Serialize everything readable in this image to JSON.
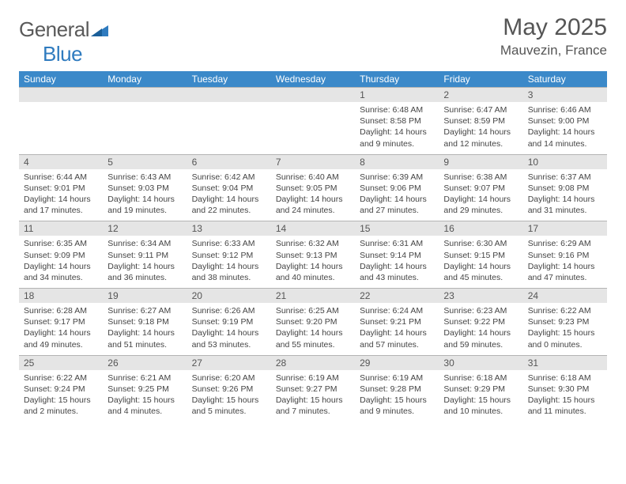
{
  "logo": {
    "text1": "General",
    "text2": "Blue"
  },
  "title": "May 2025",
  "location": "Mauvezin, France",
  "colors": {
    "header_bg": "#3b89c9",
    "header_text": "#ffffff",
    "daynum_bg": "#e5e5e5",
    "border": "#b4b4b4",
    "text": "#444444",
    "title_text": "#555555"
  },
  "weekdays": [
    "Sunday",
    "Monday",
    "Tuesday",
    "Wednesday",
    "Thursday",
    "Friday",
    "Saturday"
  ],
  "weeks": [
    {
      "nums": [
        "",
        "",
        "",
        "",
        "1",
        "2",
        "3"
      ],
      "cells": [
        null,
        null,
        null,
        null,
        {
          "sunrise": "Sunrise: 6:48 AM",
          "sunset": "Sunset: 8:58 PM",
          "daylight": "Daylight: 14 hours and 9 minutes."
        },
        {
          "sunrise": "Sunrise: 6:47 AM",
          "sunset": "Sunset: 8:59 PM",
          "daylight": "Daylight: 14 hours and 12 minutes."
        },
        {
          "sunrise": "Sunrise: 6:46 AM",
          "sunset": "Sunset: 9:00 PM",
          "daylight": "Daylight: 14 hours and 14 minutes."
        }
      ]
    },
    {
      "nums": [
        "4",
        "5",
        "6",
        "7",
        "8",
        "9",
        "10"
      ],
      "cells": [
        {
          "sunrise": "Sunrise: 6:44 AM",
          "sunset": "Sunset: 9:01 PM",
          "daylight": "Daylight: 14 hours and 17 minutes."
        },
        {
          "sunrise": "Sunrise: 6:43 AM",
          "sunset": "Sunset: 9:03 PM",
          "daylight": "Daylight: 14 hours and 19 minutes."
        },
        {
          "sunrise": "Sunrise: 6:42 AM",
          "sunset": "Sunset: 9:04 PM",
          "daylight": "Daylight: 14 hours and 22 minutes."
        },
        {
          "sunrise": "Sunrise: 6:40 AM",
          "sunset": "Sunset: 9:05 PM",
          "daylight": "Daylight: 14 hours and 24 minutes."
        },
        {
          "sunrise": "Sunrise: 6:39 AM",
          "sunset": "Sunset: 9:06 PM",
          "daylight": "Daylight: 14 hours and 27 minutes."
        },
        {
          "sunrise": "Sunrise: 6:38 AM",
          "sunset": "Sunset: 9:07 PM",
          "daylight": "Daylight: 14 hours and 29 minutes."
        },
        {
          "sunrise": "Sunrise: 6:37 AM",
          "sunset": "Sunset: 9:08 PM",
          "daylight": "Daylight: 14 hours and 31 minutes."
        }
      ]
    },
    {
      "nums": [
        "11",
        "12",
        "13",
        "14",
        "15",
        "16",
        "17"
      ],
      "cells": [
        {
          "sunrise": "Sunrise: 6:35 AM",
          "sunset": "Sunset: 9:09 PM",
          "daylight": "Daylight: 14 hours and 34 minutes."
        },
        {
          "sunrise": "Sunrise: 6:34 AM",
          "sunset": "Sunset: 9:11 PM",
          "daylight": "Daylight: 14 hours and 36 minutes."
        },
        {
          "sunrise": "Sunrise: 6:33 AM",
          "sunset": "Sunset: 9:12 PM",
          "daylight": "Daylight: 14 hours and 38 minutes."
        },
        {
          "sunrise": "Sunrise: 6:32 AM",
          "sunset": "Sunset: 9:13 PM",
          "daylight": "Daylight: 14 hours and 40 minutes."
        },
        {
          "sunrise": "Sunrise: 6:31 AM",
          "sunset": "Sunset: 9:14 PM",
          "daylight": "Daylight: 14 hours and 43 minutes."
        },
        {
          "sunrise": "Sunrise: 6:30 AM",
          "sunset": "Sunset: 9:15 PM",
          "daylight": "Daylight: 14 hours and 45 minutes."
        },
        {
          "sunrise": "Sunrise: 6:29 AM",
          "sunset": "Sunset: 9:16 PM",
          "daylight": "Daylight: 14 hours and 47 minutes."
        }
      ]
    },
    {
      "nums": [
        "18",
        "19",
        "20",
        "21",
        "22",
        "23",
        "24"
      ],
      "cells": [
        {
          "sunrise": "Sunrise: 6:28 AM",
          "sunset": "Sunset: 9:17 PM",
          "daylight": "Daylight: 14 hours and 49 minutes."
        },
        {
          "sunrise": "Sunrise: 6:27 AM",
          "sunset": "Sunset: 9:18 PM",
          "daylight": "Daylight: 14 hours and 51 minutes."
        },
        {
          "sunrise": "Sunrise: 6:26 AM",
          "sunset": "Sunset: 9:19 PM",
          "daylight": "Daylight: 14 hours and 53 minutes."
        },
        {
          "sunrise": "Sunrise: 6:25 AM",
          "sunset": "Sunset: 9:20 PM",
          "daylight": "Daylight: 14 hours and 55 minutes."
        },
        {
          "sunrise": "Sunrise: 6:24 AM",
          "sunset": "Sunset: 9:21 PM",
          "daylight": "Daylight: 14 hours and 57 minutes."
        },
        {
          "sunrise": "Sunrise: 6:23 AM",
          "sunset": "Sunset: 9:22 PM",
          "daylight": "Daylight: 14 hours and 59 minutes."
        },
        {
          "sunrise": "Sunrise: 6:22 AM",
          "sunset": "Sunset: 9:23 PM",
          "daylight": "Daylight: 15 hours and 0 minutes."
        }
      ]
    },
    {
      "nums": [
        "25",
        "26",
        "27",
        "28",
        "29",
        "30",
        "31"
      ],
      "cells": [
        {
          "sunrise": "Sunrise: 6:22 AM",
          "sunset": "Sunset: 9:24 PM",
          "daylight": "Daylight: 15 hours and 2 minutes."
        },
        {
          "sunrise": "Sunrise: 6:21 AM",
          "sunset": "Sunset: 9:25 PM",
          "daylight": "Daylight: 15 hours and 4 minutes."
        },
        {
          "sunrise": "Sunrise: 6:20 AM",
          "sunset": "Sunset: 9:26 PM",
          "daylight": "Daylight: 15 hours and 5 minutes."
        },
        {
          "sunrise": "Sunrise: 6:19 AM",
          "sunset": "Sunset: 9:27 PM",
          "daylight": "Daylight: 15 hours and 7 minutes."
        },
        {
          "sunrise": "Sunrise: 6:19 AM",
          "sunset": "Sunset: 9:28 PM",
          "daylight": "Daylight: 15 hours and 9 minutes."
        },
        {
          "sunrise": "Sunrise: 6:18 AM",
          "sunset": "Sunset: 9:29 PM",
          "daylight": "Daylight: 15 hours and 10 minutes."
        },
        {
          "sunrise": "Sunrise: 6:18 AM",
          "sunset": "Sunset: 9:30 PM",
          "daylight": "Daylight: 15 hours and 11 minutes."
        }
      ]
    }
  ]
}
